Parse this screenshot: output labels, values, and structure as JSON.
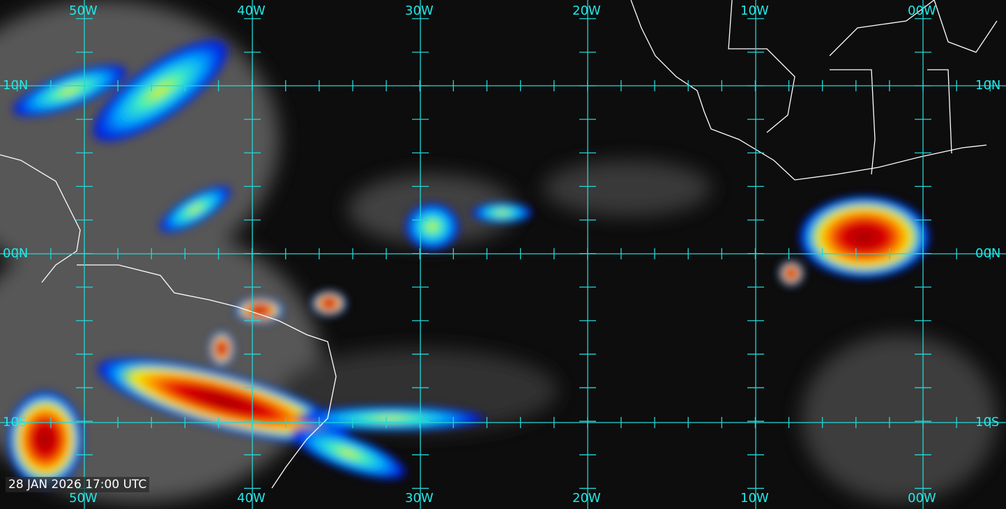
{
  "timestamp": "28 JAN 2026 17:00 UTC",
  "grid": {
    "color": "#22d8d8",
    "longitudes": [
      "50W",
      "40W",
      "30W",
      "20W",
      "10W",
      "00W"
    ],
    "latitudes_left": [
      "10N",
      "00N",
      "10S"
    ],
    "latitudes_right": [
      "10N",
      "00N",
      "10S"
    ]
  },
  "colors": {
    "background": "#0d0d0d",
    "coastline": "#ffffff",
    "cloud_scale": [
      "#9a9a9a",
      "#0018e0",
      "#00a8ff",
      "#40f0c0",
      "#f0f000",
      "#ff8000",
      "#e00000",
      "#a00000"
    ]
  }
}
